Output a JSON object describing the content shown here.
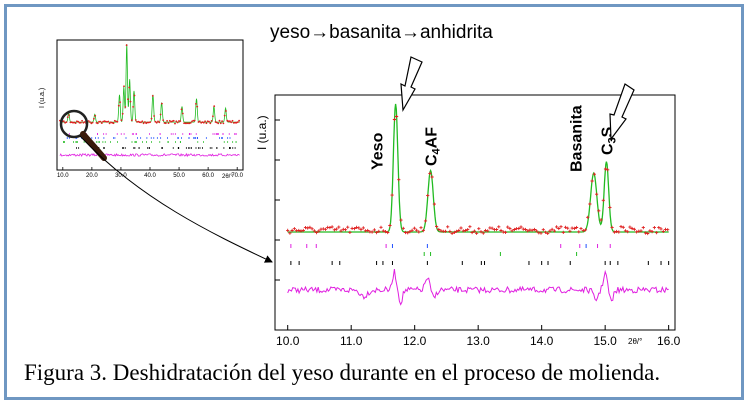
{
  "figure": {
    "title": "yeso→basanita→anhidrita",
    "caption": "Figura 3. Deshidratación del yeso durante en el proceso de molienda.",
    "frame_color": "#6f97c2"
  },
  "chart_data": [
    {
      "type": "line",
      "panel": "overview",
      "ylabel": "I (u.a.)",
      "xlabel": "2θ/°",
      "x_ticks": [
        "10.0",
        "20.0",
        "30.0",
        "40.0",
        "50.0",
        "60.0",
        "70.0"
      ],
      "xlim": [
        8,
        72
      ],
      "series": [
        {
          "role": "observed",
          "color": "#e02020"
        },
        {
          "role": "calculated",
          "color": "#22bb22"
        },
        {
          "role": "difference",
          "color": "#e020e0"
        }
      ],
      "peaks": [
        [
          12,
          0.12
        ],
        [
          21,
          0.1
        ],
        [
          29.5,
          0.35
        ],
        [
          31,
          0.45
        ],
        [
          32,
          1.0
        ],
        [
          33,
          0.55
        ],
        [
          34.5,
          0.4
        ],
        [
          41,
          0.35
        ],
        [
          44,
          0.25
        ],
        [
          51,
          0.2
        ],
        [
          56,
          0.3
        ],
        [
          62,
          0.2
        ],
        [
          66,
          0.18
        ]
      ]
    },
    {
      "type": "line",
      "panel": "zoom",
      "ylabel": "I (u.a.)",
      "xlabel": "2θ/°",
      "x_ticks": [
        "10.0",
        "11.0",
        "12.0",
        "13.0",
        "14.0",
        "15.0",
        "16.0"
      ],
      "xlim": [
        9.8,
        16.1
      ],
      "background": 0.15,
      "peaks": [
        {
          "x": 11.7,
          "height": 1.0,
          "label": "Yeso",
          "color": "#22bb22"
        },
        {
          "x": 12.25,
          "height": 0.48,
          "label": "C4AF"
        },
        {
          "x": 14.82,
          "height": 0.46,
          "label": "Basanita"
        },
        {
          "x": 15.02,
          "height": 0.55,
          "label": "C3S"
        }
      ],
      "series": [
        {
          "role": "observed",
          "color": "#e02020"
        },
        {
          "role": "calculated",
          "color": "#22bb22"
        },
        {
          "role": "difference",
          "color": "#e020e0"
        }
      ],
      "reflection_markers": {
        "magenta": [
          10.05,
          10.3,
          10.45,
          11.55,
          14.3,
          14.6,
          14.88,
          15.08
        ],
        "blue": [
          11.65,
          12.2,
          14.7
        ],
        "green": [
          12.15,
          12.25,
          13.35,
          14.55
        ],
        "black": [
          10.05,
          10.18,
          10.7,
          10.82,
          11.4,
          11.5,
          11.65,
          12.2,
          12.75,
          13.05,
          13.1,
          13.8,
          14.0,
          14.1,
          14.45,
          15.0,
          15.08,
          15.2,
          15.68,
          15.88,
          16.0
        ]
      }
    }
  ]
}
